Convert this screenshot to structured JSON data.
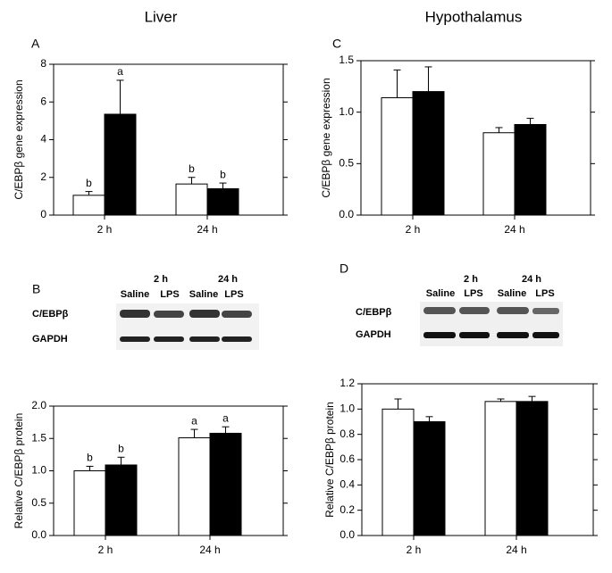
{
  "columns": [
    "Liver",
    "Hypothalamus"
  ],
  "blots": [
    {
      "time_labels": [
        "2 h",
        "24 h"
      ],
      "lane_labels": [
        "Saline",
        "LPS",
        "Saline",
        "LPS"
      ],
      "row_labels": [
        "C/EBPβ",
        "GAPDH"
      ]
    },
    {
      "time_labels": [
        "2 h",
        "24 h"
      ],
      "lane_labels": [
        "Saline",
        "LPS",
        "Saline",
        "LPS"
      ],
      "row_labels": [
        "C/EBPβ",
        "GAPDH"
      ]
    }
  ],
  "chart_data": [
    {
      "type": "bar",
      "panel": "A",
      "ylabel": "C/EBPβ gene expression",
      "categories": [
        "2 h",
        "24 h"
      ],
      "series": [
        {
          "color": "#ffffff",
          "values": [
            1.05,
            1.65
          ],
          "errors": [
            0.2,
            0.35
          ],
          "labels": [
            "b",
            "b"
          ]
        },
        {
          "color": "#000000",
          "values": [
            5.35,
            1.4
          ],
          "errors": [
            1.8,
            0.3
          ],
          "labels": [
            "a",
            "b"
          ]
        }
      ],
      "ylim": [
        0,
        8
      ],
      "yticks": [
        0,
        2,
        4,
        6,
        8
      ]
    },
    {
      "type": "bar",
      "panel": "C",
      "ylabel": "C/EBPβ gene expression",
      "categories": [
        "2 h",
        "24 h"
      ],
      "series": [
        {
          "color": "#ffffff",
          "values": [
            1.14,
            0.8
          ],
          "errors": [
            0.27,
            0.05
          ]
        },
        {
          "color": "#000000",
          "values": [
            1.2,
            0.88
          ],
          "errors": [
            0.24,
            0.06
          ]
        }
      ],
      "ylim": [
        0,
        1.5
      ],
      "yticks": [
        {
          "value": 0,
          "label": "0.0"
        },
        0.5,
        {
          "value": 1,
          "label": "1.0"
        },
        1.5
      ]
    },
    {
      "type": "bar",
      "panel": "B",
      "ylabel": "Relative C/EBPβ protein",
      "categories": [
        "2 h",
        "24 h"
      ],
      "series": [
        {
          "color": "#ffffff",
          "values": [
            1.0,
            1.51
          ],
          "errors": [
            0.07,
            0.13
          ],
          "labels": [
            "b",
            "a"
          ]
        },
        {
          "color": "#000000",
          "values": [
            1.09,
            1.58
          ],
          "errors": [
            0.12,
            0.1
          ],
          "labels": [
            "b",
            "a"
          ]
        }
      ],
      "ylim": [
        0,
        2
      ],
      "yticks": [
        {
          "value": 0,
          "label": "0.0"
        },
        0.5,
        {
          "value": 1,
          "label": "1.0"
        },
        1.5,
        {
          "value": 2,
          "label": "2.0"
        }
      ]
    },
    {
      "type": "bar",
      "panel": "D",
      "ylabel": "Relative C/EBPβ protein",
      "categories": [
        "2 h",
        "24 h"
      ],
      "series": [
        {
          "color": "#ffffff",
          "values": [
            1.0,
            1.06
          ],
          "errors": [
            0.08,
            0.02
          ]
        },
        {
          "color": "#000000",
          "values": [
            0.9,
            1.06
          ],
          "errors": [
            0.04,
            0.04
          ]
        }
      ],
      "ylim": [
        0,
        1.2
      ],
      "yticks": [
        {
          "value": 0,
          "label": "0.0"
        },
        0.2,
        0.4,
        0.6,
        0.8,
        {
          "value": 1,
          "label": "1.0"
        },
        1.2
      ]
    }
  ]
}
